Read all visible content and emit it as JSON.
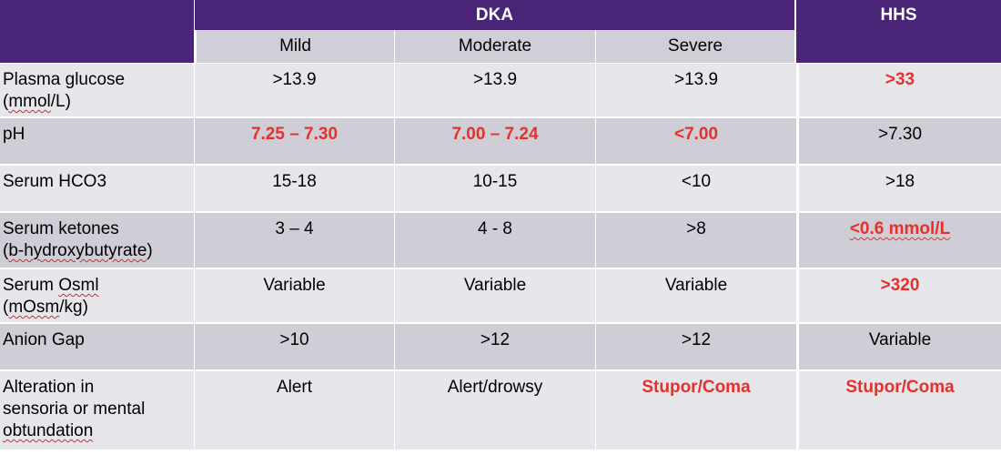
{
  "header": {
    "dka_label": "DKA",
    "hhs_label": "HHS",
    "dka_columns": [
      "Mild",
      "Moderate",
      "Severe"
    ]
  },
  "rows": [
    {
      "label_parts": [
        {
          "text": "Plasma glucose"
        },
        {
          "text": "("
        },
        {
          "text": "mmol",
          "spell": true
        },
        {
          "text": "/L)"
        }
      ],
      "values": [
        ">13.9",
        ">13.9",
        ">13.9",
        ">33"
      ],
      "emphasis": [
        false,
        false,
        false,
        true
      ]
    },
    {
      "label_parts": [
        {
          "text": "pH"
        }
      ],
      "values": [
        "7.25 – 7.30",
        "7.00 – 7.24",
        "<7.00",
        ">7.30"
      ],
      "emphasis": [
        true,
        true,
        true,
        false
      ]
    },
    {
      "label_parts": [
        {
          "text": "Serum HCO3"
        }
      ],
      "values": [
        "15-18",
        "10-15",
        "<10",
        ">18"
      ],
      "emphasis": [
        false,
        false,
        false,
        false
      ]
    },
    {
      "label_parts": [
        {
          "text": "Serum ketones"
        },
        {
          "text": "("
        },
        {
          "text": "b-hydroxybutyrate",
          "spell": true
        },
        {
          "text": ")"
        }
      ],
      "values": [
        "3 – 4",
        "4 - 8",
        ">8",
        "<0.6 mmol/L"
      ],
      "emphasis": [
        false,
        false,
        false,
        true
      ]
    },
    {
      "label_parts": [
        {
          "text": "Serum "
        },
        {
          "text": "Osml",
          "spell": true
        },
        {
          "text": "("
        },
        {
          "text": "mOsm",
          "spell": true
        },
        {
          "text": "/kg)"
        }
      ],
      "values": [
        "Variable",
        "Variable",
        "Variable",
        ">320"
      ],
      "emphasis": [
        false,
        false,
        false,
        true
      ]
    },
    {
      "label_parts": [
        {
          "text": "Anion Gap"
        }
      ],
      "values": [
        ">10",
        ">12",
        ">12",
        "Variable"
      ],
      "emphasis": [
        false,
        false,
        false,
        false
      ]
    },
    {
      "label_parts": [
        {
          "text": "Alteration in"
        },
        {
          "text": "sensoria or mental"
        },
        {
          "text": "obtundation",
          "spell": true
        }
      ],
      "values": [
        "Alert",
        "Alert/drowsy",
        "Stupor/Coma",
        "Stupor/Coma"
      ],
      "emphasis": [
        false,
        false,
        true,
        true
      ]
    }
  ],
  "colors": {
    "header_purple": "#4a2477",
    "subheader_gray": "#d0cfd8",
    "row_light": "#e7e6eb",
    "row_dark": "#cfcdd6",
    "emphasis_red": "#e8302a",
    "spellcheck_underline": "#d12a2a"
  }
}
